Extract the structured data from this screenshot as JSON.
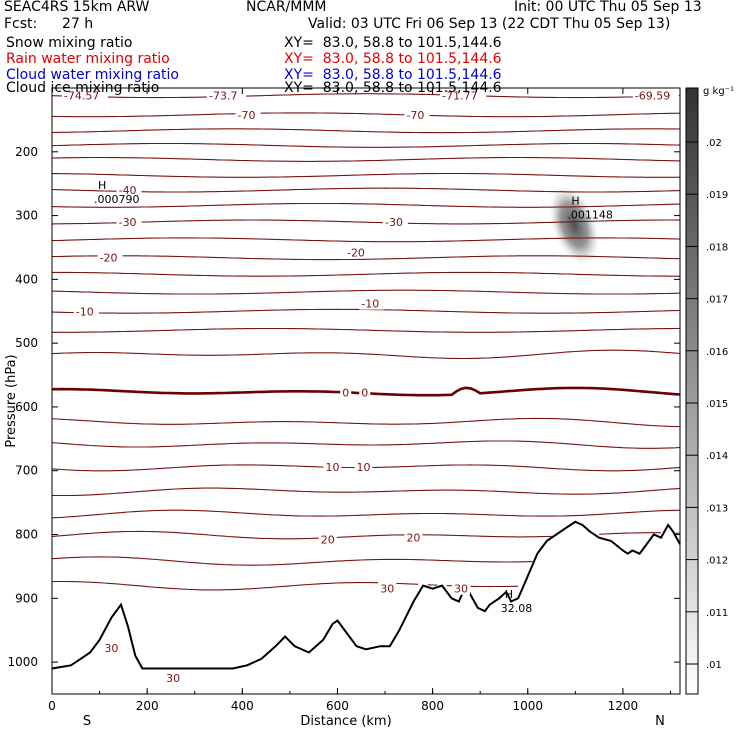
{
  "header": {
    "model": "SEAC4RS 15km ARW",
    "center": "NCAR/MMM",
    "init": "Init: 00 UTC Thu 05 Sep 13",
    "fcst_label": "Fcst:",
    "fcst_value": "27 h",
    "valid": "Valid: 03 UTC Fri 06 Sep 13 (22 CDT Thu 05 Sep 13)"
  },
  "fields": [
    {
      "name": "Snow mixing ratio",
      "xy": "XY=  83.0, 58.8 to 101.5,144.6",
      "color": "#000000"
    },
    {
      "name": "Rain water mixing ratio",
      "xy": "XY=  83.0, 58.8 to 101.5,144.6",
      "color": "#e00000"
    },
    {
      "name": "Cloud water mixing ratio",
      "xy": "XY=  83.0, 58.8 to 101.5,144.6",
      "color": "#0000d0"
    },
    {
      "name": "Cloud ice mixing ratio",
      "xy": "XY=  83.0, 58.8 to 101.5,144.6",
      "color": "#000000"
    }
  ],
  "colorbar": {
    "unit": "g kg⁻¹",
    "ticks": [
      ".02",
      ".019",
      ".018",
      ".017",
      ".016",
      ".015",
      ".014",
      ".013",
      ".012",
      ".011",
      ".01"
    ]
  },
  "colors": {
    "isotherm": "#7a1414",
    "freezing": "#6a0000",
    "terrain": "#000000",
    "cloud": "#555555"
  },
  "chart_data": {
    "type": "line",
    "title": "",
    "xlabel": "Distance (km)",
    "ylabel": "Pressure (hPa)",
    "xlim": [
      0,
      1320
    ],
    "ylim": [
      1050,
      100
    ],
    "xticks": [
      0,
      200,
      400,
      600,
      800,
      1000,
      1200
    ],
    "yticks": [
      200,
      300,
      400,
      500,
      600,
      700,
      800,
      900,
      1000
    ],
    "x_end_labels": {
      "left": "S",
      "right": "N"
    },
    "isotherm_levels_hPa": [
      112,
      142,
      167,
      190,
      212,
      237,
      260,
      284,
      310,
      338,
      366,
      392,
      420,
      450,
      480,
      518,
      577,
      624,
      658,
      694,
      732,
      768,
      802,
      842,
      880
    ],
    "isotherm_labels": [
      {
        "x": 25,
        "p": 112,
        "text": "-74.57"
      },
      {
        "x": 330,
        "p": 112,
        "text": "-73.7"
      },
      {
        "x": 820,
        "p": 112,
        "text": "-71.77"
      },
      {
        "x": 1225,
        "p": 112,
        "text": "-69.59"
      },
      {
        "x": 390,
        "p": 142,
        "text": "-70"
      },
      {
        "x": 745,
        "p": 142,
        "text": "-70"
      },
      {
        "x": 140,
        "p": 260,
        "text": "-40"
      },
      {
        "x": 140,
        "p": 310,
        "text": "-30"
      },
      {
        "x": 700,
        "p": 310,
        "text": "-30"
      },
      {
        "x": 100,
        "p": 366,
        "text": "-20"
      },
      {
        "x": 620,
        "p": 358,
        "text": "-20"
      },
      {
        "x": 50,
        "p": 450,
        "text": "-10"
      },
      {
        "x": 650,
        "p": 438,
        "text": "-10"
      },
      {
        "x": 610,
        "p": 577,
        "text": "0"
      },
      {
        "x": 650,
        "p": 577,
        "text": "0"
      },
      {
        "x": 575,
        "p": 694,
        "text": "10"
      },
      {
        "x": 640,
        "p": 694,
        "text": "10"
      },
      {
        "x": 565,
        "p": 808,
        "text": "20"
      },
      {
        "x": 745,
        "p": 805,
        "text": "20"
      },
      {
        "x": 690,
        "p": 885,
        "text": "30"
      },
      {
        "x": 845,
        "p": 885,
        "text": "30"
      },
      {
        "x": 110,
        "p": 978,
        "text": "30"
      },
      {
        "x": 240,
        "p": 1025,
        "text": "30"
      }
    ],
    "highs": [
      {
        "x": 105,
        "p": 274,
        "value": ".000790"
      },
      {
        "x": 1100,
        "p": 298,
        "value": ".001148"
      },
      {
        "x": 960,
        "p": 915,
        "value": "32.08"
      }
    ],
    "terrain_surface": {
      "x": [
        0,
        40,
        80,
        100,
        125,
        145,
        160,
        175,
        190,
        210,
        250,
        300,
        350,
        380,
        410,
        440,
        470,
        490,
        510,
        540,
        570,
        590,
        600,
        620,
        640,
        660,
        690,
        710,
        730,
        760,
        780,
        800,
        820,
        840,
        855,
        870,
        880,
        895,
        910,
        920,
        940,
        955,
        965,
        980,
        1000,
        1020,
        1040,
        1060,
        1080,
        1100,
        1115,
        1130,
        1150,
        1175,
        1200,
        1210,
        1220,
        1235,
        1250,
        1265,
        1280,
        1295,
        1305,
        1320
      ],
      "p": [
        1010,
        1005,
        985,
        965,
        930,
        910,
        945,
        990,
        1010,
        1010,
        1010,
        1010,
        1010,
        1010,
        1005,
        995,
        975,
        960,
        975,
        985,
        965,
        940,
        935,
        955,
        975,
        980,
        975,
        975,
        950,
        905,
        880,
        885,
        880,
        900,
        905,
        880,
        895,
        915,
        920,
        910,
        900,
        890,
        905,
        900,
        865,
        830,
        810,
        800,
        790,
        780,
        785,
        795,
        805,
        810,
        825,
        830,
        825,
        830,
        815,
        800,
        805,
        785,
        795,
        815
      ]
    },
    "cloud_region": {
      "x": [
        1060,
        1135
      ],
      "p": [
        260,
        370
      ],
      "label": "Cloud ice mixing ratio maximum"
    }
  }
}
